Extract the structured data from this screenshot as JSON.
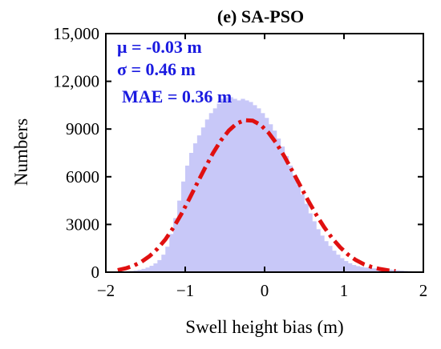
{
  "chart_data": {
    "type": "bar",
    "title": "(e) SA-PSO",
    "xlabel": "Swell height bias (m)",
    "ylabel": "Numbers",
    "xlim": [
      -2,
      2
    ],
    "ylim": [
      0,
      15000
    ],
    "x_ticks": [
      -2,
      -1,
      0,
      1,
      2
    ],
    "x_tick_labels": [
      "−2",
      "−1",
      "0",
      "1",
      "2"
    ],
    "y_ticks": [
      0,
      3000,
      6000,
      9000,
      12000,
      15000
    ],
    "y_tick_labels": [
      "0",
      "3000",
      "6000",
      "9000",
      "12,000",
      "15,000"
    ],
    "annotations": [
      "μ = -0.03 m",
      "σ = 0.46 m",
      "MAE = 0.36 m"
    ],
    "grid": false,
    "legend": "none",
    "colors": {
      "histogram": "#c8c8f8",
      "fit_curve": "#e01010",
      "annotation_text": "#1a1ae0",
      "axis": "#000000"
    },
    "bin_width": 0.05,
    "histogram": {
      "bin_centers": [
        -1.875,
        -1.825,
        -1.775,
        -1.725,
        -1.675,
        -1.625,
        -1.575,
        -1.525,
        -1.475,
        -1.425,
        -1.375,
        -1.325,
        -1.275,
        -1.225,
        -1.175,
        -1.125,
        -1.075,
        -1.025,
        -0.975,
        -0.925,
        -0.875,
        -0.825,
        -0.775,
        -0.725,
        -0.675,
        -0.625,
        -0.575,
        -0.525,
        -0.475,
        -0.425,
        -0.375,
        -0.325,
        -0.275,
        -0.225,
        -0.175,
        -0.125,
        -0.075,
        -0.025,
        0.025,
        0.075,
        0.125,
        0.175,
        0.225,
        0.275,
        0.325,
        0.375,
        0.425,
        0.475,
        0.525,
        0.575,
        0.625,
        0.675,
        0.725,
        0.775,
        0.825,
        0.875,
        0.925,
        0.975,
        1.025,
        1.075,
        1.125,
        1.175,
        1.225,
        1.275,
        1.325,
        1.375,
        1.425,
        1.475,
        1.525,
        1.575,
        1.625,
        1.675,
        1.725,
        1.775,
        1.825,
        1.875,
        1.925,
        1.975
      ],
      "values": [
        20,
        30,
        40,
        60,
        80,
        110,
        150,
        210,
        290,
        400,
        550,
        760,
        1100,
        1600,
        2400,
        3400,
        4500,
        5700,
        6700,
        7500,
        8100,
        8600,
        9100,
        9600,
        10000,
        10300,
        10600,
        10900,
        11000,
        11000,
        10900,
        10800,
        10900,
        10800,
        10700,
        10500,
        10300,
        10000,
        9700,
        9300,
        8900,
        8400,
        7900,
        7300,
        6700,
        6100,
        5500,
        4900,
        4300,
        3700,
        3200,
        2700,
        2300,
        1950,
        1650,
        1350,
        1100,
        880,
        700,
        560,
        450,
        380,
        330,
        290,
        260,
        240,
        220,
        200,
        180,
        160,
        140,
        120,
        100,
        80,
        60,
        45,
        30,
        20
      ]
    },
    "fit_curve": {
      "name": "Gaussian fit",
      "x": [
        -1.85,
        -1.75,
        -1.65,
        -1.55,
        -1.45,
        -1.35,
        -1.25,
        -1.15,
        -1.05,
        -0.95,
        -0.85,
        -0.75,
        -0.65,
        -0.55,
        -0.45,
        -0.35,
        -0.25,
        -0.15,
        -0.05,
        0.05,
        0.15,
        0.25,
        0.35,
        0.45,
        0.55,
        0.65,
        0.75,
        0.85,
        0.95,
        1.05,
        1.15,
        1.25,
        1.35,
        1.45,
        1.55,
        1.65
      ],
      "y": [
        130,
        240,
        410,
        660,
        1000,
        1470,
        2060,
        2800,
        3650,
        4590,
        5580,
        6560,
        7480,
        8280,
        8910,
        9350,
        9560,
        9530,
        9260,
        8770,
        8090,
        7270,
        6360,
        5420,
        4490,
        3620,
        2830,
        2140,
        1570,
        1110,
        760,
        500,
        320,
        200,
        120,
        70
      ]
    }
  }
}
